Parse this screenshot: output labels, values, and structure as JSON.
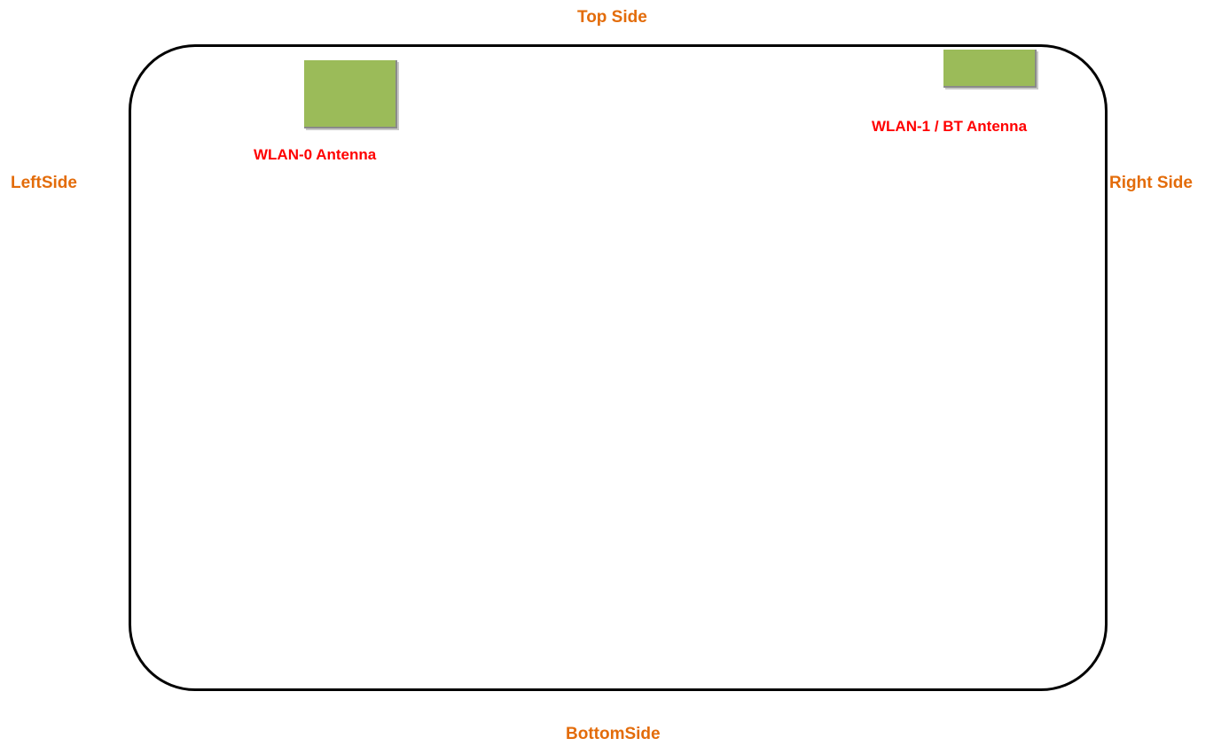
{
  "sides": {
    "top": "Top Side",
    "left": "LeftSide",
    "right": "Right Side",
    "bottom": "BottomSide"
  },
  "antennas": [
    {
      "label": "WLAN-0 Antenna"
    },
    {
      "label": "WLAN-1 / BT Antenna"
    }
  ],
  "colors": {
    "side_label": "#e36c0a",
    "antenna_label": "#ff0000",
    "antenna_fill": "#9bbb59",
    "outline": "#000000"
  }
}
